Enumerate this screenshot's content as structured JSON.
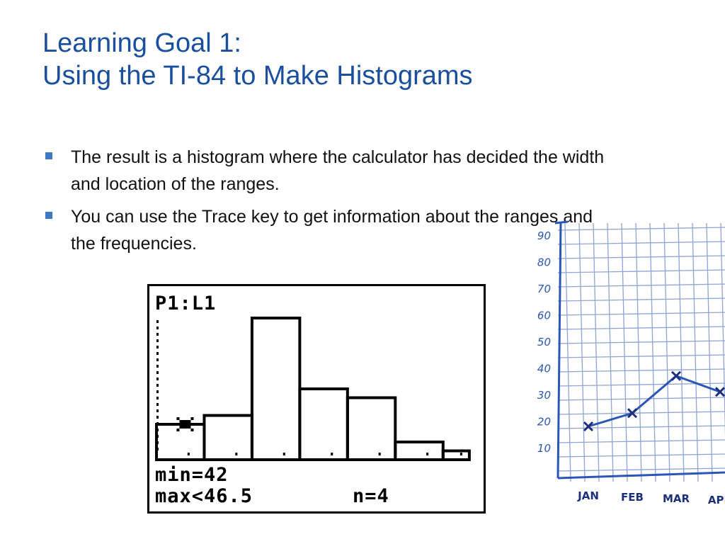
{
  "title": {
    "line1": "Learning Goal 1:",
    "line2": "Using the TI-84 to Make Histograms"
  },
  "bullets": [
    "The result is a histogram where the calculator has decided the width and location of the ranges.",
    "You can use the Trace key to get information about the ranges and the frequencies."
  ],
  "colors": {
    "title": "#1a4f9e",
    "bullet_marker": "#3f78c4",
    "hand_chart_line": "#2a56b8"
  },
  "calculator_screen": {
    "plot_label": "P1:L1",
    "min_label": "min=42",
    "max_label": "max<46.5",
    "n_label": "n=4",
    "chart_data": {
      "type": "bar",
      "bin_frequencies": [
        4,
        5,
        16,
        8,
        7,
        2,
        1
      ],
      "traced_bin_index": 0,
      "traced_bin_min": 42,
      "traced_bin_max": 46.5,
      "traced_bin_count": 4
    }
  },
  "hand_drawn_chart": {
    "chart_data": {
      "type": "line",
      "categories": [
        "JAN",
        "FEB",
        "MAR",
        "APR"
      ],
      "y_ticks": [
        10,
        20,
        30,
        40,
        50,
        60,
        70,
        80,
        90
      ],
      "values": [
        18,
        23,
        37,
        31
      ],
      "grid": true
    }
  }
}
